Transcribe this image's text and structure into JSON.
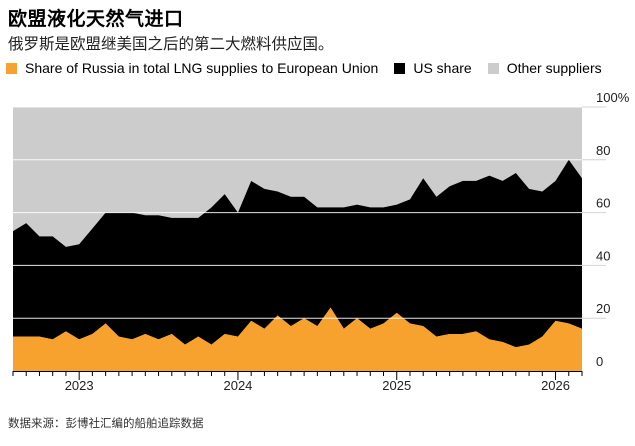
{
  "header": {
    "title": "欧盟液化天然气进口",
    "subtitle": "俄罗斯是欧盟继美国之后的第二大燃料供应国。"
  },
  "legend": {
    "items": [
      {
        "label": "Share of Russia in total LNG supplies to European Union",
        "color": "#f7a12f"
      },
      {
        "label": "US share",
        "color": "#000000"
      },
      {
        "label": "Other suppliers",
        "color": "#cccccc"
      }
    ]
  },
  "footer": {
    "source": "数据来源：彭博社汇编的船舶追踪数据"
  },
  "chart_data": {
    "type": "area",
    "stacked": true,
    "x_start": "2022-08",
    "x_end": "2026-03",
    "x": [
      "2022-08",
      "2022-09",
      "2022-10",
      "2022-11",
      "2022-12",
      "2023-01",
      "2023-02",
      "2023-03",
      "2023-04",
      "2023-05",
      "2023-06",
      "2023-07",
      "2023-08",
      "2023-09",
      "2023-10",
      "2023-11",
      "2023-12",
      "2024-01",
      "2024-02",
      "2024-03",
      "2024-04",
      "2024-05",
      "2024-06",
      "2024-07",
      "2024-08",
      "2024-09",
      "2024-10",
      "2024-11",
      "2024-12",
      "2025-01",
      "2025-02",
      "2025-03",
      "2025-04",
      "2025-05",
      "2025-06",
      "2025-07",
      "2025-08",
      "2025-09",
      "2025-10",
      "2025-11",
      "2025-12",
      "2026-01",
      "2026-02",
      "2026-03"
    ],
    "series": [
      {
        "name": "Share of Russia in total LNG supplies to European Union",
        "color": "#f7a12f",
        "values": [
          13,
          13,
          13,
          12,
          15,
          12,
          14,
          18,
          13,
          12,
          14,
          12,
          14,
          10,
          13,
          10,
          14,
          13,
          19,
          16,
          21,
          17,
          20,
          17,
          24,
          16,
          20,
          16,
          18,
          22,
          18,
          17,
          13,
          14,
          14,
          15,
          12,
          11,
          9,
          10,
          13,
          19,
          18,
          16
        ]
      },
      {
        "name": "US share",
        "color": "#000000",
        "values": [
          40,
          43,
          38,
          39,
          32,
          36,
          40,
          42,
          47,
          48,
          45,
          47,
          44,
          48,
          45,
          52,
          53,
          47,
          53,
          53,
          47,
          49,
          46,
          45,
          38,
          46,
          43,
          46,
          44,
          41,
          47,
          56,
          53,
          56,
          58,
          57,
          62,
          61,
          66,
          59,
          55,
          53,
          62,
          57
        ]
      },
      {
        "name": "Other suppliers",
        "color": "#cccccc",
        "values": [
          47,
          44,
          49,
          49,
          53,
          52,
          46,
          40,
          40,
          40,
          41,
          41,
          42,
          42,
          42,
          38,
          33,
          40,
          28,
          31,
          32,
          34,
          34,
          38,
          38,
          38,
          37,
          38,
          38,
          37,
          35,
          27,
          34,
          30,
          28,
          28,
          26,
          28,
          25,
          31,
          32,
          28,
          20,
          27
        ]
      }
    ],
    "x_ticks": [
      "2023",
      "2024",
      "2025",
      "2026"
    ],
    "y_ticks": [
      "0",
      "20",
      "40",
      "60",
      "80",
      "100%"
    ],
    "ylim": [
      0,
      100
    ],
    "grid": true,
    "legend_position": "top"
  }
}
